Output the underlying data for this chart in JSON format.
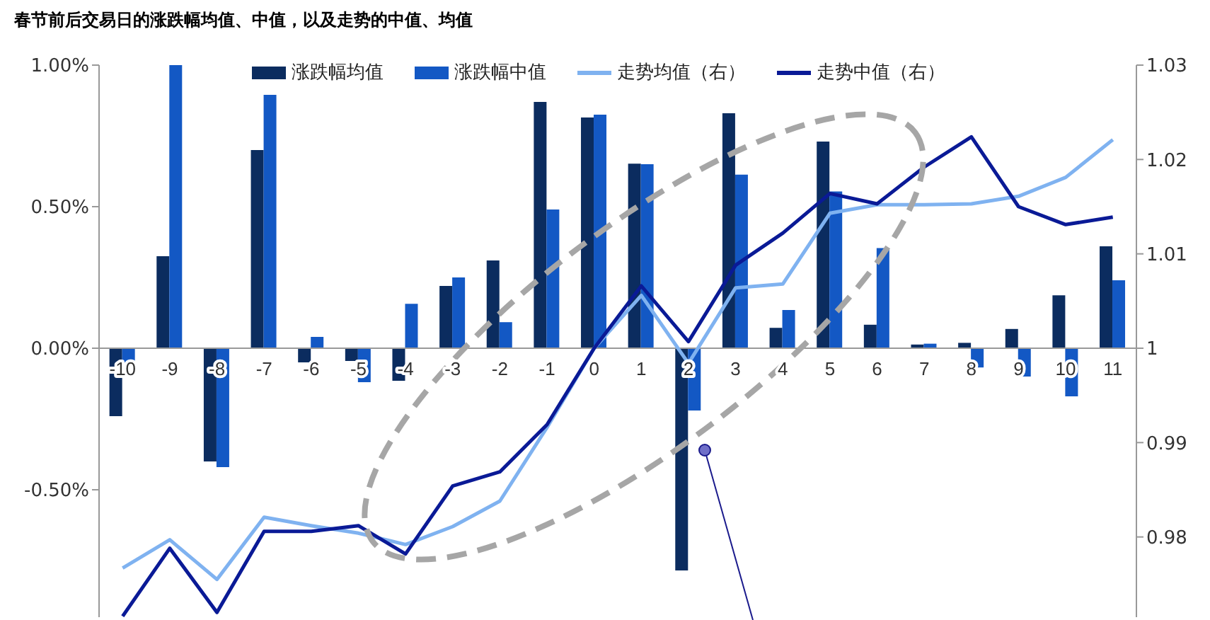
{
  "chart_data": {
    "type": "bar",
    "title": "春节前后交易日的涨跌幅均值、中值，以及走势的中值、均值",
    "categories": [
      "-10",
      "-9",
      "-8",
      "-7",
      "-6",
      "-5",
      "-4",
      "-3",
      "-2",
      "-1",
      "0",
      "1",
      "2",
      "3",
      "4",
      "5",
      "6",
      "7",
      "8",
      "9",
      "10",
      "11"
    ],
    "series": [
      {
        "name": "涨跌幅均值",
        "color": "#0b2c5f",
        "values": [
          -0.24,
          0.325,
          -0.4,
          0.7,
          -0.05,
          -0.045,
          -0.115,
          0.22,
          0.31,
          0.87,
          0.815,
          0.652,
          -0.785,
          0.83,
          0.072,
          0.73,
          0.083,
          0.013,
          0.019,
          0.068,
          0.187,
          0.36
        ]
      },
      {
        "name": "涨跌幅中值",
        "color": "#1358c4",
        "values": [
          -0.05,
          1.0,
          -0.42,
          0.895,
          0.04,
          -0.12,
          0.157,
          0.25,
          0.092,
          0.49,
          0.825,
          0.65,
          -0.22,
          0.613,
          0.135,
          0.554,
          0.354,
          0.016,
          -0.068,
          -0.1,
          -0.17,
          0.24
        ]
      },
      {
        "name": "走势均值（右）",
        "type": "line",
        "axis": "y2",
        "color": "#7fb2f0",
        "values": [
          0.9767,
          0.9797,
          0.9755,
          0.9821,
          0.9812,
          0.9804,
          0.9792,
          0.9811,
          0.9838,
          0.9916,
          1.0,
          1.0056,
          0.9984,
          1.0064,
          1.0068,
          1.0143,
          1.0152,
          1.0152,
          1.0153,
          1.0161,
          1.0181,
          1.0221
        ]
      },
      {
        "name": "走势中值（右）",
        "type": "line",
        "axis": "y2",
        "color": "#0a1a96",
        "values": [
          0.9716,
          0.9788,
          0.972,
          0.9806,
          0.9806,
          0.9812,
          0.9782,
          0.9854,
          0.9869,
          0.9919,
          1.0,
          1.0066,
          1.0007,
          1.0088,
          1.0122,
          1.0164,
          1.0153,
          1.0192,
          1.0224,
          1.015,
          1.0131,
          1.0139
        ]
      }
    ],
    "ylim": [
      -0.95,
      1.0
    ],
    "yticks": [
      {
        "value": -0.5,
        "label": "-0.50%"
      },
      {
        "value": 0,
        "label": "0.00%"
      },
      {
        "value": 0.5,
        "label": "0.50%"
      },
      {
        "value": 1.0,
        "label": "1.00%"
      }
    ],
    "y2lim": [
      0.9715,
      1.03
    ],
    "y2ticks": [
      0.98,
      0.99,
      1,
      1.01,
      1.02,
      1.03
    ],
    "legend": "top",
    "grid": false,
    "marker": "none",
    "line_style": "solid"
  }
}
